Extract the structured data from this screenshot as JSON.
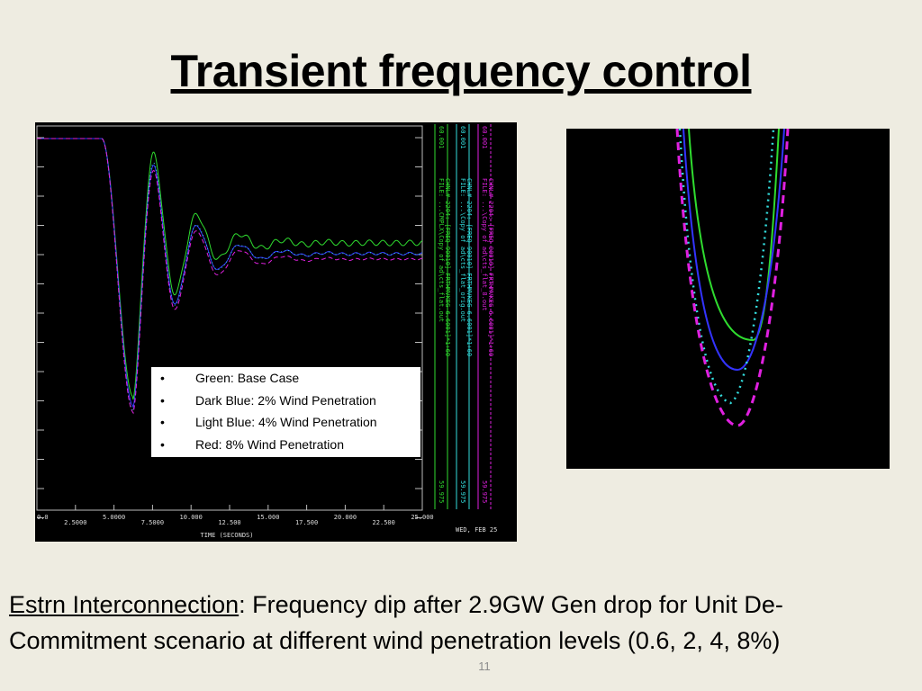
{
  "title": "Transient frequency control",
  "plot": {
    "x_tick_labels": [
      "0.0",
      "2.5000",
      "5.0000",
      "7.5000",
      "10.000",
      "12.500",
      "15.000",
      "17.500",
      "20.000",
      "22.500",
      "25.000"
    ],
    "x_axis_label": "TIME (SECONDS)",
    "date": "WED, FEB 25",
    "channels": [
      {
        "top": "60.001",
        "bottom": "59.975",
        "file": "FILE: ...CMPLX\\Copy of ad\\cts_flat.out",
        "desc": "CHNL# 2204: [FREQ 90010] FRTHMVKEG 6.6001]*1+60"
      },
      {
        "top": "60.001",
        "bottom": "59.975",
        "file": "FILE: ...\\Copy of ad\\cts_flat_orig.out",
        "desc": "CHNL# 2204: [FREQ 90010] FRTHMVKEG 6.6001]*1+60"
      },
      {
        "top": "60.001",
        "bottom": "59.975",
        "file": "FILE: ...\\Copy of ad\\cts_flat_8.out",
        "desc": "CHNL# 2204: [FREQ 90010] FRTHMVKEG 6.6001]*1+60"
      }
    ]
  },
  "legend": [
    "Green: Base Case",
    "Dark Blue: 2% Wind Penetration",
    "Light Blue: 4% Wind Penetration",
    "Red: 8% Wind Penetration"
  ],
  "caption": {
    "link": "Estrn Interconnection",
    "text": ": Frequency dip after 2.9GW Gen drop for Unit De-Commitment scenario at different wind penetration levels (0.6, 2, 4, 8%)"
  },
  "page_number": "11"
}
